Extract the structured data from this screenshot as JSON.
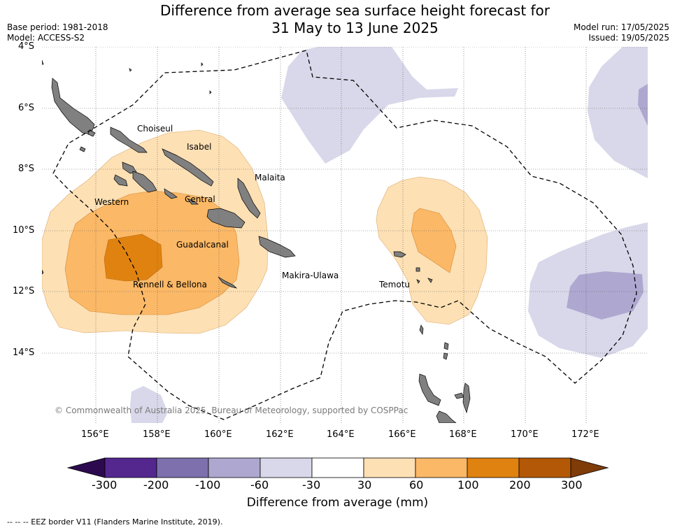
{
  "header": {
    "title_line1": "Difference from average sea surface height forecast for",
    "title_line2": "31 May to 13 June 2025",
    "base_period": "Base period: 1981-2018",
    "model": "Model: ACCESS-S2",
    "model_run": "Model run: 17/05/2025",
    "issued": "Issued: 19/05/2025"
  },
  "map": {
    "latitude_labels": [
      "4°S",
      "6°S",
      "8°S",
      "10°S",
      "12°S",
      "14°S"
    ],
    "longitude_labels": [
      "156°E",
      "158°E",
      "160°E",
      "162°E",
      "164°E",
      "166°E",
      "168°E",
      "170°E",
      "172°E"
    ],
    "places": {
      "choiseul": "Choiseul",
      "isabel": "Isabel",
      "malaita": "Malaita",
      "western": "Western",
      "central": "Central",
      "guadalcanal": "Guadalcanal",
      "makira_ulawa": "Makira-Ulawa",
      "temotu": "Temotu",
      "rennell_bellona": "Rennell & Bellona"
    },
    "copyright": "© Commonwealth of Australia 2025, Bureau of Meteorology, supported by COSPPac",
    "land_color": "#808080",
    "eez_line_style": "dashed black"
  },
  "colorbar": {
    "label": "Difference from average (mm)",
    "ticks": [
      "-300",
      "-200",
      "-100",
      "-60",
      "-30",
      "30",
      "60",
      "100",
      "200",
      "300"
    ],
    "colors": [
      "#2d0a4f",
      "#54278f",
      "#7d70ad",
      "#aea8d0",
      "#d8d8ea",
      "#ffffff",
      "#fde0b4",
      "#fbb866",
      "#e0820f",
      "#b35806",
      "#7f3b08"
    ]
  },
  "footer": {
    "eez_note": "--  --  -- EEZ border V11 (Flanders Marine Institute, 2019)."
  }
}
